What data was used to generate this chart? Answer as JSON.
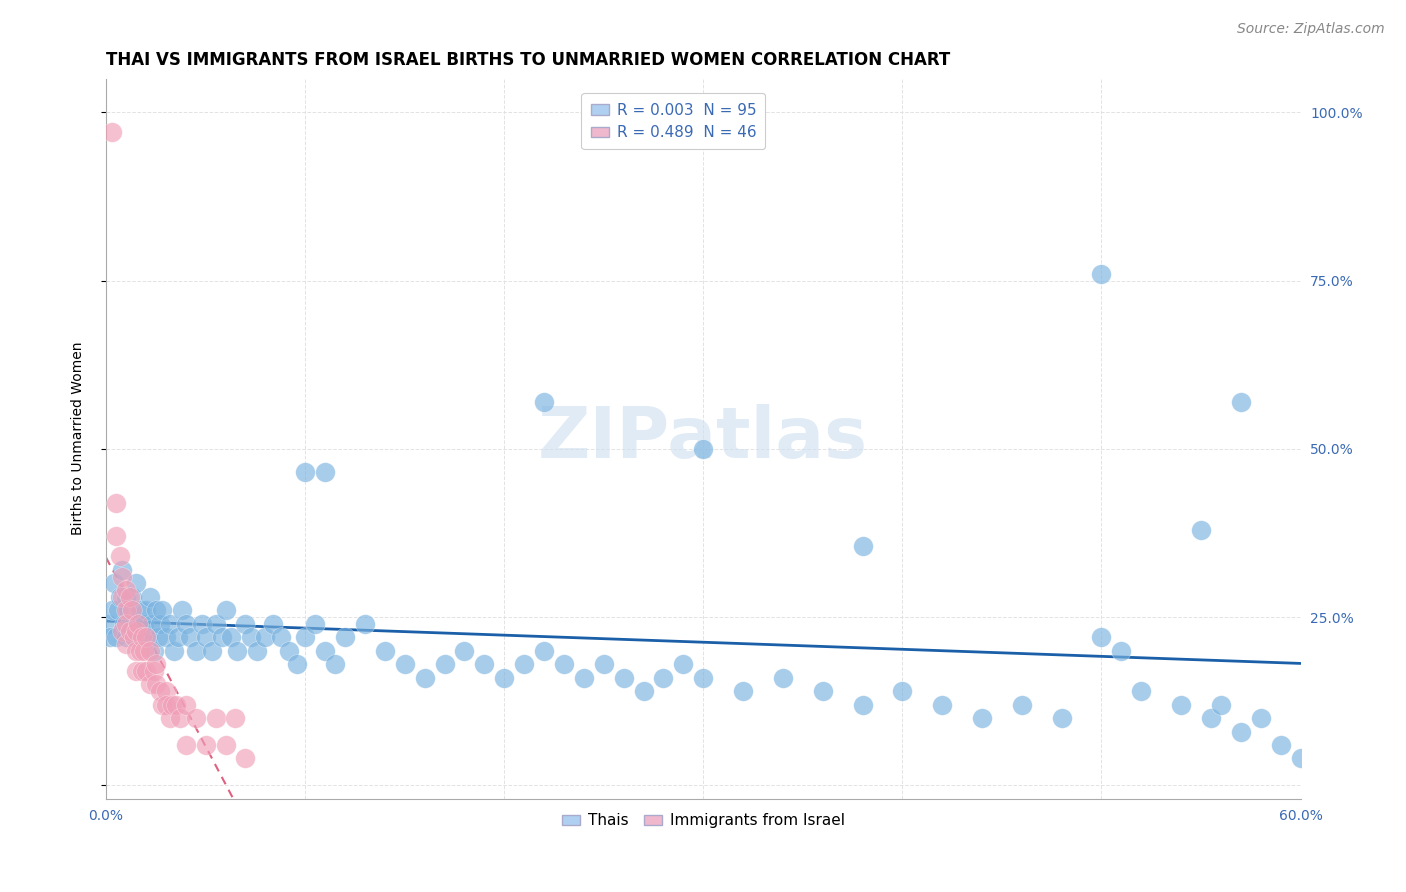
{
  "title": "THAI VS IMMIGRANTS FROM ISRAEL BIRTHS TO UNMARRIED WOMEN CORRELATION CHART",
  "source": "Source: ZipAtlas.com",
  "ylabel": "Births to Unmarried Women",
  "xlim": [
    0.0,
    0.6
  ],
  "ylim": [
    -0.02,
    1.05
  ],
  "ytick_vals": [
    0.0,
    0.25,
    0.5,
    0.75,
    1.0
  ],
  "ytick_labels_right": [
    "",
    "25.0%",
    "50.0%",
    "75.0%",
    "100.0%"
  ],
  "xtick_vals": [
    0.0,
    0.1,
    0.2,
    0.3,
    0.4,
    0.5,
    0.6
  ],
  "xtick_labels": [
    "0.0%",
    "",
    "",
    "",
    "",
    "",
    "60.0%"
  ],
  "watermark_text": "ZIPatlas",
  "thai_color": "#7ab3e0",
  "israel_color": "#f0a0b8",
  "thai_line_color": "#1a5fa8",
  "israel_line_color": "#e06080",
  "background_color": "#ffffff",
  "grid_color": "#e0e0e0",
  "title_fontsize": 12,
  "axis_label_fontsize": 10,
  "tick_fontsize": 10,
  "legend_fontsize": 11,
  "source_fontsize": 10,
  "thai_pts_x": [
    0.001,
    0.002,
    0.003,
    0.004,
    0.005,
    0.006,
    0.007,
    0.008,
    0.009,
    0.01,
    0.01,
    0.011,
    0.012,
    0.013,
    0.014,
    0.015,
    0.016,
    0.017,
    0.018,
    0.019,
    0.02,
    0.021,
    0.022,
    0.023,
    0.024,
    0.025,
    0.026,
    0.027,
    0.028,
    0.03,
    0.032,
    0.034,
    0.036,
    0.038,
    0.04,
    0.042,
    0.045,
    0.048,
    0.05,
    0.053,
    0.055,
    0.058,
    0.06,
    0.063,
    0.066,
    0.07,
    0.073,
    0.076,
    0.08,
    0.084,
    0.088,
    0.092,
    0.096,
    0.1,
    0.105,
    0.11,
    0.115,
    0.12,
    0.13,
    0.14,
    0.15,
    0.16,
    0.17,
    0.18,
    0.19,
    0.2,
    0.21,
    0.22,
    0.23,
    0.24,
    0.25,
    0.26,
    0.27,
    0.28,
    0.29,
    0.3,
    0.32,
    0.34,
    0.36,
    0.38,
    0.4,
    0.42,
    0.44,
    0.46,
    0.48,
    0.5,
    0.51,
    0.52,
    0.54,
    0.555,
    0.56,
    0.57,
    0.58,
    0.59,
    0.6
  ],
  "thai_pts_y": [
    0.24,
    0.22,
    0.26,
    0.3,
    0.22,
    0.26,
    0.28,
    0.32,
    0.24,
    0.28,
    0.22,
    0.26,
    0.24,
    0.28,
    0.22,
    0.3,
    0.24,
    0.26,
    0.22,
    0.24,
    0.26,
    0.22,
    0.28,
    0.24,
    0.2,
    0.26,
    0.22,
    0.24,
    0.26,
    0.22,
    0.24,
    0.2,
    0.22,
    0.26,
    0.24,
    0.22,
    0.2,
    0.24,
    0.22,
    0.2,
    0.24,
    0.22,
    0.26,
    0.22,
    0.2,
    0.24,
    0.22,
    0.2,
    0.22,
    0.24,
    0.22,
    0.2,
    0.18,
    0.22,
    0.24,
    0.2,
    0.18,
    0.22,
    0.24,
    0.2,
    0.18,
    0.16,
    0.18,
    0.2,
    0.18,
    0.16,
    0.18,
    0.2,
    0.18,
    0.16,
    0.18,
    0.16,
    0.14,
    0.16,
    0.18,
    0.16,
    0.14,
    0.16,
    0.14,
    0.12,
    0.14,
    0.12,
    0.1,
    0.12,
    0.1,
    0.22,
    0.2,
    0.14,
    0.12,
    0.1,
    0.12,
    0.08,
    0.1,
    0.06,
    0.04
  ],
  "thai_outliers_x": [
    0.5,
    0.57,
    0.22,
    0.3,
    0.38,
    0.55,
    0.1,
    0.11
  ],
  "thai_outliers_y": [
    0.76,
    0.57,
    0.57,
    0.5,
    0.355,
    0.38,
    0.465,
    0.465
  ],
  "israel_pts_x": [
    0.003,
    0.005,
    0.005,
    0.007,
    0.008,
    0.008,
    0.008,
    0.01,
    0.01,
    0.01,
    0.01,
    0.012,
    0.012,
    0.013,
    0.014,
    0.015,
    0.015,
    0.015,
    0.016,
    0.017,
    0.018,
    0.018,
    0.019,
    0.02,
    0.02,
    0.022,
    0.022,
    0.024,
    0.025,
    0.025,
    0.027,
    0.028,
    0.03,
    0.03,
    0.032,
    0.033,
    0.035,
    0.037,
    0.04,
    0.04,
    0.045,
    0.05,
    0.055,
    0.06,
    0.065,
    0.07
  ],
  "israel_pts_y": [
    0.97,
    0.42,
    0.37,
    0.34,
    0.31,
    0.28,
    0.23,
    0.29,
    0.26,
    0.24,
    0.21,
    0.28,
    0.23,
    0.26,
    0.22,
    0.23,
    0.2,
    0.17,
    0.24,
    0.2,
    0.22,
    0.17,
    0.2,
    0.22,
    0.17,
    0.2,
    0.15,
    0.17,
    0.18,
    0.15,
    0.14,
    0.12,
    0.14,
    0.12,
    0.1,
    0.12,
    0.12,
    0.1,
    0.12,
    0.06,
    0.1,
    0.06,
    0.1,
    0.06,
    0.1,
    0.04
  ]
}
